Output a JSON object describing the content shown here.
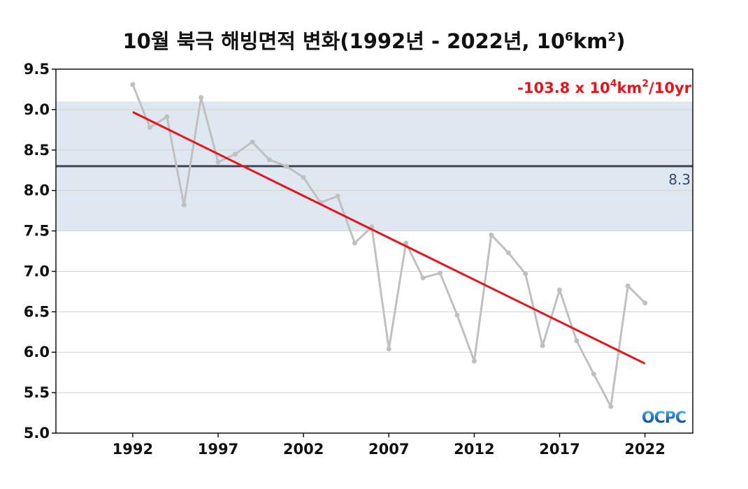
{
  "title": {
    "main": "10월 북극 해빙면적 변화(1992년 - 2022년, 10",
    "exp1": "6",
    "mid": "km",
    "exp2": "2",
    "end": ")"
  },
  "trend_label": {
    "prefix": "-103.8 x 10",
    "exp1": "4",
    "mid": "km",
    "exp2": "2",
    "suffix": "/10yr"
  },
  "reference_label": "8.3",
  "logo": {
    "text": "OCPC"
  },
  "colors": {
    "data_line": "#c0c0c0",
    "trend_line": "#e8141b",
    "reference_line": "#3d4654",
    "band": "#dfe8f1",
    "trend_text": "#e8141b"
  },
  "chart_data": {
    "type": "line",
    "x": [
      1992,
      1993,
      1994,
      1995,
      1996,
      1997,
      1998,
      1999,
      2000,
      2001,
      2002,
      2003,
      2004,
      2005,
      2006,
      2007,
      2008,
      2009,
      2010,
      2011,
      2012,
      2013,
      2014,
      2015,
      2016,
      2017,
      2018,
      2019,
      2020,
      2021,
      2022
    ],
    "series": [
      {
        "values": [
          9.31,
          8.78,
          8.91,
          7.82,
          9.15,
          8.35,
          8.45,
          8.6,
          8.38,
          8.3,
          8.16,
          7.85,
          7.93,
          7.35,
          7.55,
          6.04,
          7.35,
          6.92,
          6.98,
          6.46,
          5.89,
          7.45,
          7.23,
          6.97,
          6.08,
          6.77,
          6.14,
          5.73,
          5.33,
          6.82,
          6.61
        ]
      }
    ],
    "trend": {
      "start": [
        1992,
        8.97
      ],
      "end": [
        2022,
        5.86
      ],
      "slope_label": "-103.8 x 10⁴km²/10yr"
    },
    "reference": {
      "value": 8.3,
      "label": "8.3"
    },
    "band": {
      "lower": 7.5,
      "upper": 9.1
    },
    "title": "10월 북극 해빙면적 변화(1992년 - 2022년, 10⁶km²)",
    "xlabel": "",
    "ylabel": "",
    "xlim": [
      1987.5,
      2024.8
    ],
    "ylim": [
      5.0,
      9.5
    ],
    "xticks": [
      1992,
      1997,
      2002,
      2007,
      2012,
      2017,
      2022
    ],
    "yticks": [
      5.0,
      5.5,
      6.0,
      6.5,
      7.0,
      7.5,
      8.0,
      8.5,
      9.0,
      9.5
    ],
    "ytick_labels": [
      "5.0",
      "5.5",
      "6.0",
      "6.5",
      "7.0",
      "7.5",
      "8.0",
      "8.5",
      "9.0",
      "9.5"
    ],
    "xtick_labels": [
      "1992",
      "1997",
      "2002",
      "2007",
      "2012",
      "2017",
      "2022"
    ],
    "grid": true
  }
}
